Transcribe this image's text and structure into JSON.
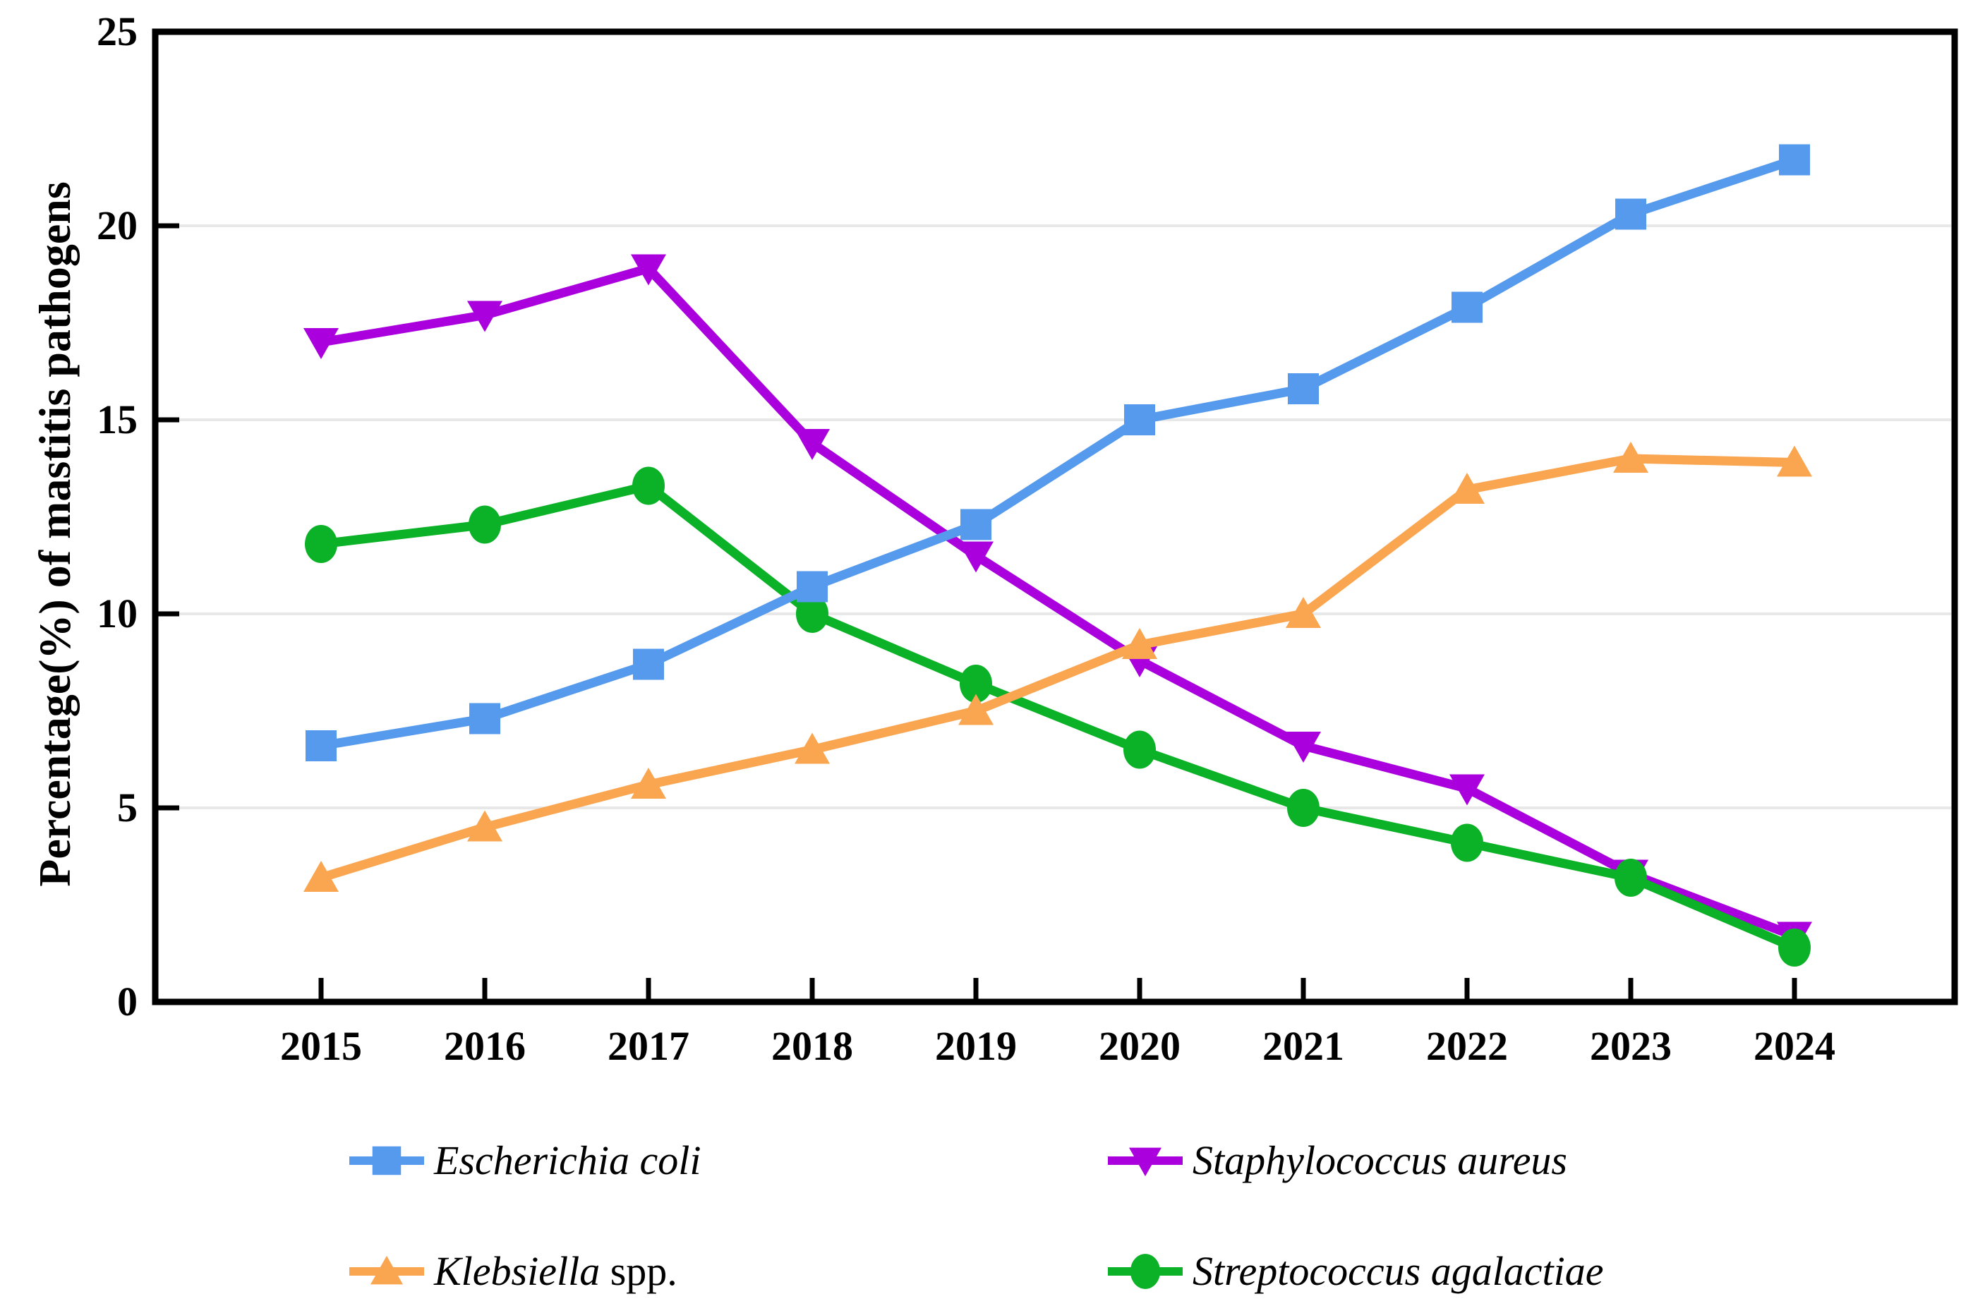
{
  "chart_data": {
    "type": "line",
    "title": "",
    "ylabel": "Percentage(%) of mastitis pathogens",
    "xlabel": "",
    "ylim": [
      0,
      25
    ],
    "yticks": [
      0,
      5,
      10,
      15,
      20,
      25
    ],
    "ytick_labels": [
      "0",
      "5",
      "10",
      "15",
      "20",
      "25"
    ],
    "grid": "horizontal",
    "grid_color": "#E8E8E8",
    "axis_color": "#000000",
    "legend_position": "bottom",
    "categories": [
      "2015",
      "2016",
      "2017",
      "2018",
      "2019",
      "2020",
      "2021",
      "2022",
      "2023",
      "2024"
    ],
    "series": [
      {
        "name": "Escherichia coli",
        "marker": "square",
        "color": "#559AEC",
        "values": [
          6.6,
          7.3,
          8.7,
          10.7,
          12.3,
          15.0,
          15.8,
          17.9,
          20.3,
          21.7
        ]
      },
      {
        "name": "Staphylococcus aureus",
        "marker": "triangle-down",
        "color": "#AA00DD",
        "values": [
          17.0,
          17.7,
          18.9,
          14.4,
          11.5,
          8.8,
          6.6,
          5.5,
          3.3,
          1.7
        ]
      },
      {
        "name": "Klebsiella spp.",
        "marker": "triangle-up",
        "color": "#FAA550",
        "values": [
          3.2,
          4.5,
          5.6,
          6.5,
          7.5,
          9.2,
          10.0,
          13.2,
          14.0,
          13.9
        ]
      },
      {
        "name": "Streptococcus agalactiae",
        "marker": "circle",
        "color": "#0BB227",
        "values": [
          11.8,
          12.3,
          13.3,
          10.0,
          8.2,
          6.5,
          5.0,
          4.1,
          3.2,
          1.4
        ]
      }
    ],
    "draw_order": [
      1,
      3,
      2,
      0
    ]
  },
  "legend": {
    "items": [
      {
        "genus_italic": "Escherichia coli",
        "suffix_roman": "",
        "series": 0
      },
      {
        "genus_italic": "Staphylococcus aureus",
        "suffix_roman": "",
        "series": 1
      },
      {
        "genus_italic": "Klebsiella",
        "suffix_roman": " spp.",
        "series": 2
      },
      {
        "genus_italic": "Streptococcus agalactiae",
        "suffix_roman": "",
        "series": 3
      }
    ]
  }
}
